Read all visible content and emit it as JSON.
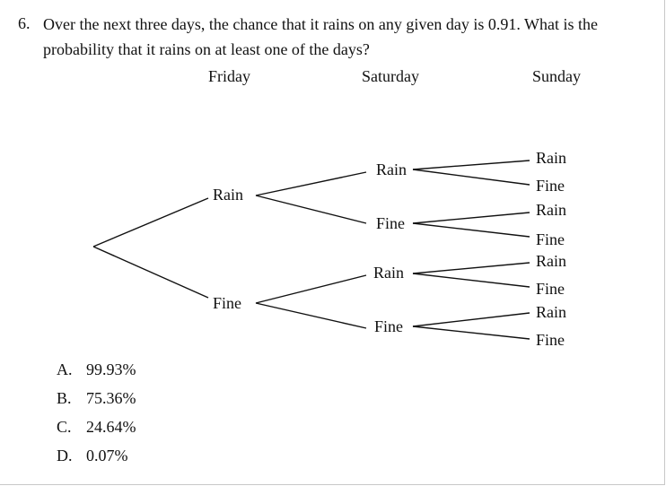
{
  "question": {
    "number": "6.",
    "line1": "Over the next three days, the chance that it rains on any given day is 0.91. What is the",
    "line2": "probability that it rains on at least one of the days?"
  },
  "tree": {
    "days": [
      "Friday",
      "Saturday",
      "Sunday"
    ],
    "friday": [
      "Rain",
      "Fine"
    ],
    "saturday": [
      "Rain",
      "Fine",
      "Rain",
      "Fine"
    ],
    "sunday": [
      "Rain",
      "Fine",
      "Rain",
      "Fine",
      "Rain",
      "Fine",
      "Rain",
      "Fine"
    ]
  },
  "options": [
    {
      "letter": "A.",
      "text": "99.93%"
    },
    {
      "letter": "B.",
      "text": "75.36%"
    },
    {
      "letter": "C.",
      "text": "24.64%"
    },
    {
      "letter": "D.",
      "text": "0.07%"
    }
  ]
}
